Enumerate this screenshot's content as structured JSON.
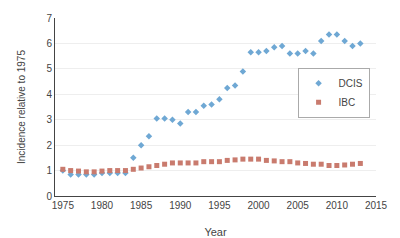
{
  "chart_data": {
    "type": "scatter",
    "x_label": "Year",
    "y_label": "Incidence relative to 1975",
    "series": [
      {
        "name": "DCIS",
        "color": "#6fa8d4",
        "marker": "diamond",
        "x": [
          1975,
          1976,
          1977,
          1978,
          1979,
          1980,
          1981,
          1982,
          1983,
          1984,
          1985,
          1986,
          1987,
          1988,
          1989,
          1990,
          1991,
          1992,
          1993,
          1994,
          1995,
          1996,
          1997,
          1998,
          1999,
          2000,
          2001,
          2002,
          2003,
          2004,
          2005,
          2006,
          2007,
          2008,
          2009,
          2010,
          2011,
          2012,
          2013
        ],
        "values": [
          1.0,
          0.85,
          0.85,
          0.85,
          0.85,
          0.9,
          0.9,
          0.9,
          0.9,
          1.5,
          2.0,
          2.35,
          3.05,
          3.05,
          3.0,
          2.85,
          3.3,
          3.3,
          3.55,
          3.6,
          3.8,
          4.25,
          4.35,
          4.9,
          5.65,
          5.65,
          5.7,
          5.85,
          5.9,
          5.6,
          5.6,
          5.7,
          5.6,
          6.1,
          6.35,
          6.35,
          6.1,
          5.9,
          6.0
        ]
      },
      {
        "name": "IBC",
        "color": "#c97b6e",
        "marker": "square",
        "x": [
          1975,
          1976,
          1977,
          1978,
          1979,
          1980,
          1981,
          1982,
          1983,
          1984,
          1985,
          1986,
          1987,
          1988,
          1989,
          1990,
          1991,
          1992,
          1993,
          1994,
          1995,
          1996,
          1997,
          1998,
          1999,
          2000,
          2001,
          2002,
          2003,
          2004,
          2005,
          2006,
          2007,
          2008,
          2009,
          2010,
          2011,
          2012,
          2013
        ],
        "values": [
          1.05,
          1.0,
          0.98,
          0.95,
          0.95,
          0.98,
          1.0,
          1.0,
          1.0,
          1.05,
          1.1,
          1.15,
          1.2,
          1.25,
          1.3,
          1.3,
          1.3,
          1.3,
          1.35,
          1.35,
          1.35,
          1.4,
          1.42,
          1.45,
          1.45,
          1.45,
          1.4,
          1.38,
          1.35,
          1.35,
          1.3,
          1.28,
          1.25,
          1.25,
          1.2,
          1.2,
          1.22,
          1.25,
          1.28
        ]
      }
    ],
    "xlim": [
      1974,
      2015
    ],
    "xticks": [
      1975,
      1980,
      1985,
      1990,
      1995,
      2000,
      2005,
      2010,
      2015
    ],
    "ylim": [
      0,
      7
    ],
    "yticks": [
      0,
      1,
      2,
      3,
      4,
      5,
      6,
      7
    ],
    "grid": true,
    "legend": "right"
  }
}
